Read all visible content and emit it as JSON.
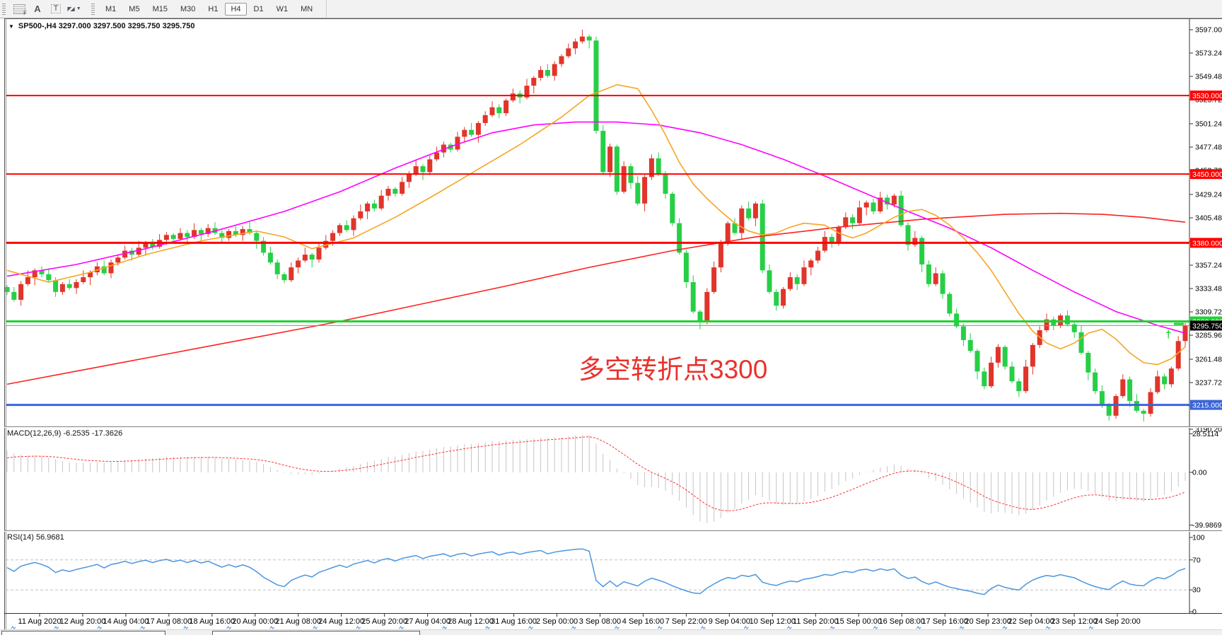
{
  "toolbar": {
    "f_badge": "F",
    "label_tool": "A",
    "text_tool": "T",
    "arrow_icon_glyphs": "◤◢",
    "dropdown_caret": "▼",
    "timeframes": [
      "M1",
      "M5",
      "M15",
      "M30",
      "H1",
      "H4",
      "D1",
      "W1",
      "MN"
    ],
    "active_timeframe": "H4"
  },
  "chart_header": {
    "collapse_icon": "▼",
    "title": "SP500-,H4 3297.000 3297.500 3295.750 3295.750"
  },
  "annotation": {
    "text": "多空转折点3300",
    "color": "#e8322c"
  },
  "chart_data": {
    "type": "candlestick",
    "symbol": "SP500-",
    "timeframe": "H4",
    "ohlc_display": {
      "open": "3297.000",
      "high": "3297.500",
      "low": "3295.750",
      "close": "3295.750"
    },
    "candles": {
      "first_open": 3335,
      "up_color": "#e0352b",
      "down_color": "#26cf46",
      "wick_up_pattern": [
        2,
        5,
        3,
        7,
        2,
        4,
        6,
        3
      ],
      "wick_down_pattern": [
        3,
        2,
        6,
        2,
        8,
        3,
        2,
        5
      ],
      "closes": [
        3330,
        3322,
        3338,
        3345,
        3352,
        3348,
        3342,
        3330,
        3338,
        3334,
        3340,
        3345,
        3350,
        3356,
        3349,
        3360,
        3365,
        3372,
        3368,
        3375,
        3380,
        3376,
        3383,
        3388,
        3384,
        3390,
        3386,
        3393,
        3389,
        3395,
        3390,
        3385,
        3392,
        3388,
        3394,
        3390,
        3382,
        3370,
        3360,
        3348,
        3342,
        3355,
        3362,
        3368,
        3363,
        3375,
        3382,
        3390,
        3398,
        3393,
        3405,
        3412,
        3420,
        3415,
        3428,
        3435,
        3430,
        3442,
        3450,
        3458,
        3452,
        3465,
        3472,
        3480,
        3475,
        3488,
        3495,
        3490,
        3502,
        3510,
        3518,
        3512,
        3525,
        3532,
        3528,
        3540,
        3548,
        3556,
        3550,
        3562,
        3570,
        3578,
        3585,
        3590,
        3586,
        3494,
        3452,
        3478,
        3432,
        3458,
        3441,
        3420,
        3447,
        3466,
        3450,
        3430,
        3400,
        3370,
        3340,
        3310,
        3300,
        3330,
        3355,
        3380,
        3400,
        3390,
        3415,
        3405,
        3420,
        3352,
        3330,
        3316,
        3333,
        3345,
        3338,
        3355,
        3362,
        3372,
        3386,
        3380,
        3396,
        3406,
        3400,
        3416,
        3421,
        3412,
        3426,
        3419,
        3428,
        3398,
        3378,
        3385,
        3358,
        3338,
        3349,
        3328,
        3308,
        3295,
        3281,
        3270,
        3249,
        3234,
        3258,
        3274,
        3254,
        3239,
        3229,
        3254,
        3276,
        3291,
        3302,
        3296,
        3306,
        3297,
        3289,
        3268,
        3248,
        3229,
        3214,
        3204,
        3224,
        3241,
        3219,
        3209,
        3206,
        3228,
        3244,
        3236,
        3252,
        3280,
        3295.8
      ]
    },
    "price_axis": {
      "ticks": [
        "3597.000",
        "3573.240",
        "3549.480",
        "3525.720",
        "3501.240",
        "3477.480",
        "3453.720",
        "3429.240",
        "3405.480",
        "3381.720",
        "3357.240",
        "3333.480",
        "3309.720",
        "3285.960",
        "3261.480",
        "3237.720",
        "3213.960",
        "3190.200"
      ]
    },
    "hlines": [
      {
        "price": 3530,
        "color": "#ff0000",
        "width": 2,
        "label": "3530.000"
      },
      {
        "price": 3450,
        "color": "#ff0000",
        "width": 2,
        "label": "3450.000"
      },
      {
        "price": 3380,
        "color": "#ff0000",
        "width": 3,
        "label": "3380.000"
      },
      {
        "price": 3300,
        "color": "#1fd333",
        "width": 3,
        "label": "3300.000"
      },
      {
        "price": 3215,
        "color": "#3a64d8",
        "width": 3,
        "label": "3215.000"
      }
    ],
    "bid_line": {
      "price": 3295.75,
      "color": "#8a8f96",
      "label": "3295.750",
      "label_bg": "#000000"
    },
    "mas": [
      {
        "name": "ma-slow-red",
        "color": "#ff2020",
        "points": [
          [
            0,
            3236
          ],
          [
            12,
            3252
          ],
          [
            24,
            3268
          ],
          [
            36,
            3284
          ],
          [
            48,
            3300
          ],
          [
            60,
            3318
          ],
          [
            72,
            3336
          ],
          [
            84,
            3355
          ],
          [
            96,
            3372
          ],
          [
            108,
            3386
          ],
          [
            120,
            3396
          ],
          [
            132,
            3404
          ],
          [
            144,
            3409
          ],
          [
            152,
            3410
          ],
          [
            158,
            3409
          ],
          [
            164,
            3406
          ],
          [
            170,
            3401
          ]
        ]
      },
      {
        "name": "ma-mid-magenta",
        "color": "#ff00ff",
        "points": [
          [
            0,
            3346
          ],
          [
            10,
            3358
          ],
          [
            20,
            3374
          ],
          [
            30,
            3392
          ],
          [
            40,
            3412
          ],
          [
            48,
            3432
          ],
          [
            56,
            3456
          ],
          [
            64,
            3478
          ],
          [
            70,
            3492
          ],
          [
            76,
            3500
          ],
          [
            82,
            3503
          ],
          [
            88,
            3503
          ],
          [
            94,
            3500
          ],
          [
            100,
            3492
          ],
          [
            106,
            3480
          ],
          [
            112,
            3465
          ],
          [
            118,
            3448
          ],
          [
            124,
            3430
          ],
          [
            130,
            3412
          ],
          [
            136,
            3395
          ],
          [
            142,
            3375
          ],
          [
            148,
            3352
          ],
          [
            154,
            3330
          ],
          [
            160,
            3310
          ],
          [
            166,
            3296
          ],
          [
            170,
            3288
          ]
        ]
      },
      {
        "name": "ma-fast-orange",
        "color": "#f5a623",
        "points": [
          [
            0,
            3352
          ],
          [
            6,
            3340
          ],
          [
            12,
            3350
          ],
          [
            20,
            3368
          ],
          [
            28,
            3382
          ],
          [
            36,
            3392
          ],
          [
            40,
            3386
          ],
          [
            44,
            3374
          ],
          [
            50,
            3385
          ],
          [
            56,
            3406
          ],
          [
            62,
            3430
          ],
          [
            68,
            3455
          ],
          [
            74,
            3480
          ],
          [
            80,
            3508
          ],
          [
            84,
            3530
          ],
          [
            88,
            3541
          ],
          [
            91,
            3537
          ],
          [
            93,
            3515
          ],
          [
            95,
            3490
          ],
          [
            97,
            3462
          ],
          [
            99,
            3440
          ],
          [
            101,
            3425
          ],
          [
            103,
            3412
          ],
          [
            105,
            3400
          ],
          [
            107,
            3392
          ],
          [
            109,
            3388
          ],
          [
            111,
            3390
          ],
          [
            113,
            3396
          ],
          [
            115,
            3400
          ],
          [
            118,
            3398
          ],
          [
            120,
            3390
          ],
          [
            122,
            3385
          ],
          [
            124,
            3390
          ],
          [
            126,
            3398
          ],
          [
            128,
            3406
          ],
          [
            130,
            3412
          ],
          [
            132,
            3414
          ],
          [
            134,
            3408
          ],
          [
            136,
            3398
          ],
          [
            138,
            3385
          ],
          [
            140,
            3370
          ],
          [
            142,
            3352
          ],
          [
            144,
            3330
          ],
          [
            146,
            3308
          ],
          [
            148,
            3290
          ],
          [
            150,
            3278
          ],
          [
            152,
            3272
          ],
          [
            154,
            3278
          ],
          [
            156,
            3288
          ],
          [
            158,
            3292
          ],
          [
            160,
            3282
          ],
          [
            162,
            3268
          ],
          [
            164,
            3258
          ],
          [
            166,
            3256
          ],
          [
            168,
            3262
          ],
          [
            170,
            3274
          ]
        ]
      }
    ],
    "marker": {
      "glyph": "†",
      "color": "#1fd333"
    },
    "macd": {
      "header": "MACD(12,26,9) -6.2535 -17.3626",
      "ticks": [
        "28.5114",
        "0.00",
        "-39.9869"
      ],
      "histogram_color": "#c4c4c4",
      "signal_color": "#ff3030"
    },
    "rsi": {
      "header": "RSI(14) 56.9681",
      "ticks": [
        "100",
        "70",
        "30",
        "0"
      ],
      "levels": [
        70,
        30
      ],
      "line_color": "#4a96e0"
    },
    "time_axis": {
      "labels": [
        "11 Aug 2020",
        "12 Aug 20:00",
        "14 Aug 04:00",
        "17 Aug 08:00",
        "18 Aug 16:00",
        "20 Aug 00:00",
        "21 Aug 08:00",
        "24 Aug 12:00",
        "25 Aug 20:00",
        "27 Aug 04:00",
        "28 Aug 12:00",
        "31 Aug 16:00",
        "2 Sep 00:00",
        "3 Sep 08:00",
        "4 Sep 16:00",
        "7 Sep 22:00",
        "9 Sep 04:00",
        "10 Sep 12:00",
        "11 Sep 20:00",
        "15 Sep 00:00",
        "16 Sep 08:00",
        "17 Sep 16:00",
        "20 Sep 23:00",
        "22 Sep 04:00",
        "23 Sep 12:00",
        "24 Sep 20:00"
      ]
    }
  }
}
